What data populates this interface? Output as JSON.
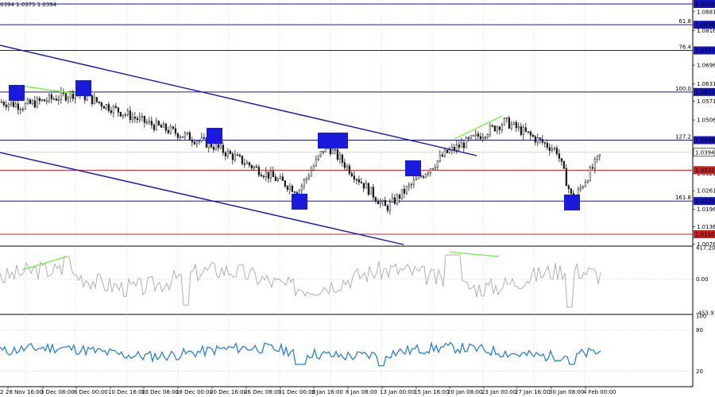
{
  "header_text": "0394 1.0375 1.0394",
  "colors": {
    "candle": "#1a1a1a",
    "channel": "#1010cc",
    "level_blue": "#1515bb",
    "level_red": "#cc2020",
    "box": "#1a1adf",
    "green": "#7cf04a",
    "cci": "#b0b0b0",
    "rsi": "#2a7fe0",
    "price_box": "#1010a0"
  },
  "price_levels": [
    {
      "label": "1.0908",
      "color": "blue"
    },
    {
      "label": "1.0836",
      "color": "blue",
      "fib": "61.8"
    },
    {
      "label": "1.0747",
      "color": "blue",
      "fib": "76.4"
    },
    {
      "label": "1.0603",
      "color": "blue",
      "fib": "100.0"
    },
    {
      "label": "1.0436",
      "color": "blue",
      "fib": "127.2"
    },
    {
      "label": "1.0332",
      "color": "red"
    },
    {
      "label": "1.0225",
      "color": "blue",
      "fib": "161.8"
    },
    {
      "label": "1.0110",
      "color": "red"
    }
  ],
  "current_price": "1.0394",
  "y_ticks": [
    "1.0881",
    "1.0816",
    "1.0696",
    "1.0631",
    "1.0571",
    "1.0506",
    "1.0321",
    "1.0261",
    "1.0196",
    "1.0136",
    "1.0076"
  ],
  "cci_ticks": [
    "417.2044",
    "0.00",
    "-453.913"
  ],
  "rsi_ticks": [
    "100",
    "80",
    "20",
    "0"
  ],
  "x_labels": [
    "28 Nov 16:00",
    "3 Dec 08:00",
    "6 Dec 00:00",
    "10 Dec 16:00",
    "13 Dec 08:00",
    "18 Dec 00:00",
    "20 Dec 16:00",
    "26 Dec 08:00",
    "31 Dec 00:00",
    "3 Jan 16:00",
    "8 Jan 08:00",
    "13 Jan 00:00",
    "15 Jan 16:00",
    "20 Jan 08:00",
    "23 Jan 00:00",
    "27 Jan 16:00",
    "30 Jan 08:00",
    "4 Feb 00:00"
  ],
  "x_label_first": "2",
  "chart_data": {
    "type": "candlestick",
    "symbol_hint": "EUR/USD 4H",
    "price_anchors": [
      {
        "x": "28 Nov 16:00",
        "price": 1.0555
      },
      {
        "x": "6 Dec 00:00",
        "price": 1.06
      },
      {
        "x": "13 Dec 08:00",
        "price": 1.05
      },
      {
        "x": "20 Dec 16:00",
        "price": 1.042
      },
      {
        "x": "31 Dec 00:00",
        "price": 1.026
      },
      {
        "x": "3 Jan 16:00",
        "price": 1.042
      },
      {
        "x": "13 Jan 00:00",
        "price": 1.02
      },
      {
        "x": "20 Jan 08:00",
        "price": 1.039
      },
      {
        "x": "27 Jan 16:00",
        "price": 1.05
      },
      {
        "x": "30 Jan 08:00",
        "price": 1.04
      },
      {
        "x": "4 Feb 00:00",
        "price": 1.0225
      },
      {
        "x": "last",
        "price": 1.0394
      }
    ],
    "cci_range": [
      -453.913,
      417.2044
    ],
    "rsi_range": [
      0,
      100
    ]
  }
}
